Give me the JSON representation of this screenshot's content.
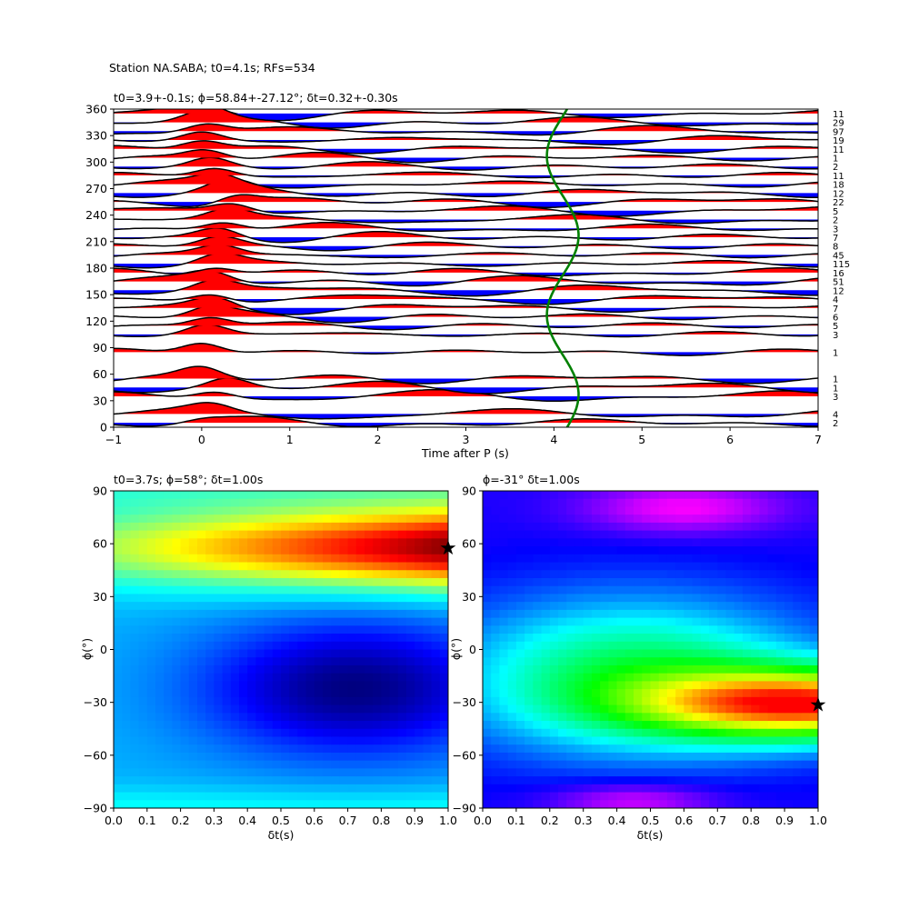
{
  "suptitle": "Station NA.SABA; t0=4.1s; RFs=534",
  "chart_data": [
    {
      "type": "line",
      "name": "receiver-functions",
      "title": "t0=3.9+-0.1s; ϕ=58.84+-27.12°; δt=0.32+-0.30s",
      "xlabel": "Time after P (s)",
      "ylabel": "",
      "xlim": [
        -1,
        7
      ],
      "ylim": [
        0,
        360
      ],
      "xticks": [
        "−1",
        "0",
        "1",
        "2",
        "3",
        "4",
        "5",
        "6",
        "7"
      ],
      "yticks": [
        "0",
        "30",
        "60",
        "90",
        "120",
        "150",
        "180",
        "210",
        "240",
        "270",
        "300",
        "330",
        "360"
      ],
      "positive_fill": "#ff0000",
      "negative_fill": "#0000ff",
      "trace_color": "#000000",
      "t0_curve_color": "#008000",
      "t0_curve": {
        "mean": 4.1,
        "amplitude": 0.18,
        "period_deg": 180,
        "phase_deg": 8
      },
      "traces": [
        {
          "baz": 5,
          "count": "2",
          "peak_t": 0.0,
          "peak_a": 0.6
        },
        {
          "baz": 15,
          "count": "4",
          "peak_t": 0.1,
          "peak_a": 1.2
        },
        {
          "baz": 35,
          "count": "3",
          "peak_t": 0.15,
          "peak_a": 1.4
        },
        {
          "baz": 45,
          "count": "1",
          "peak_t": 0.3,
          "peak_a": 1.6
        },
        {
          "baz": 55,
          "count": "1",
          "peak_t": 0.0,
          "peak_a": 1.8
        },
        {
          "baz": 85,
          "count": "1",
          "peak_t": 0.0,
          "peak_a": 2.0
        },
        {
          "baz": 105,
          "count": "3",
          "peak_t": 0.05,
          "peak_a": 1.8
        },
        {
          "baz": 115,
          "count": "5",
          "peak_t": 0.1,
          "peak_a": 1.6
        },
        {
          "baz": 125,
          "count": "6",
          "peak_t": 0.1,
          "peak_a": 1.6
        },
        {
          "baz": 135,
          "count": "7",
          "peak_t": 0.15,
          "peak_a": 1.6
        },
        {
          "baz": 145,
          "count": "4",
          "peak_t": 0.1,
          "peak_a": 1.6
        },
        {
          "baz": 155,
          "count": "12",
          "peak_t": 0.15,
          "peak_a": 1.6
        },
        {
          "baz": 165,
          "count": "51",
          "peak_t": 0.1,
          "peak_a": 1.6
        },
        {
          "baz": 175,
          "count": "16",
          "peak_t": 0.15,
          "peak_a": 1.6
        },
        {
          "baz": 185,
          "count": "115",
          "peak_t": 0.2,
          "peak_a": 1.6
        },
        {
          "baz": 195,
          "count": "45",
          "peak_t": 0.2,
          "peak_a": 1.6
        },
        {
          "baz": 205,
          "count": "8",
          "peak_t": 0.2,
          "peak_a": 1.6
        },
        {
          "baz": 215,
          "count": "7",
          "peak_t": 0.2,
          "peak_a": 1.6
        },
        {
          "baz": 225,
          "count": "3",
          "peak_t": 0.25,
          "peak_a": 1.6
        },
        {
          "baz": 235,
          "count": "2",
          "peak_t": 0.3,
          "peak_a": 1.6
        },
        {
          "baz": 245,
          "count": "5",
          "peak_t": 0.35,
          "peak_a": 1.6
        },
        {
          "baz": 255,
          "count": "22",
          "peak_t": 0.4,
          "peak_a": 1.6
        },
        {
          "baz": 265,
          "count": "12",
          "peak_t": 0.3,
          "peak_a": 1.6
        },
        {
          "baz": 275,
          "count": "18",
          "peak_t": 0.2,
          "peak_a": 1.6
        },
        {
          "baz": 285,
          "count": "11",
          "peak_t": 0.15,
          "peak_a": 1.6
        },
        {
          "baz": 295,
          "count": "2",
          "peak_t": 0.1,
          "peak_a": 1.6
        },
        {
          "baz": 305,
          "count": "1",
          "peak_t": 0.05,
          "peak_a": 1.6
        },
        {
          "baz": 315,
          "count": "11",
          "peak_t": 0.0,
          "peak_a": 1.6
        },
        {
          "baz": 325,
          "count": "19",
          "peak_t": 0.0,
          "peak_a": 1.6
        },
        {
          "baz": 335,
          "count": "97",
          "peak_t": 0.05,
          "peak_a": 1.6
        },
        {
          "baz": 345,
          "count": "29",
          "peak_t": 0.05,
          "peak_a": 1.6
        },
        {
          "baz": 355,
          "count": "11",
          "peak_t": 0.0,
          "peak_a": 1.6
        }
      ]
    },
    {
      "type": "heatmap",
      "name": "energy-grid-1",
      "title": "t0=3.7s; ϕ=58°; δt=1.00s",
      "xlabel": "δt(s)",
      "ylabel": "ϕ(°)",
      "xlim": [
        0,
        1
      ],
      "ylim": [
        -90,
        90
      ],
      "xticks": [
        "0.0",
        "0.1",
        "0.2",
        "0.3",
        "0.4",
        "0.5",
        "0.6",
        "0.7",
        "0.8",
        "0.9",
        "1.0"
      ],
      "yticks": [
        "−90",
        "−60",
        "−30",
        "0",
        "30",
        "60",
        "90"
      ],
      "colormap": "jet",
      "best": {
        "dt": 1.0,
        "phi": 58
      }
    },
    {
      "type": "heatmap",
      "name": "energy-grid-2",
      "title": "ϕ=-31° δt=1.00s",
      "xlabel": "δt(s)",
      "ylabel": "ϕ(°)",
      "xlim": [
        0,
        1
      ],
      "ylim": [
        -90,
        90
      ],
      "xticks": [
        "0.0",
        "0.1",
        "0.2",
        "0.3",
        "0.4",
        "0.5",
        "0.6",
        "0.7",
        "0.8",
        "0.9",
        "1.0"
      ],
      "yticks": [
        "−90",
        "−60",
        "−30",
        "0",
        "30",
        "60",
        "90"
      ],
      "colormap": "hsv",
      "best": {
        "dt": 1.0,
        "phi": -31
      }
    }
  ]
}
